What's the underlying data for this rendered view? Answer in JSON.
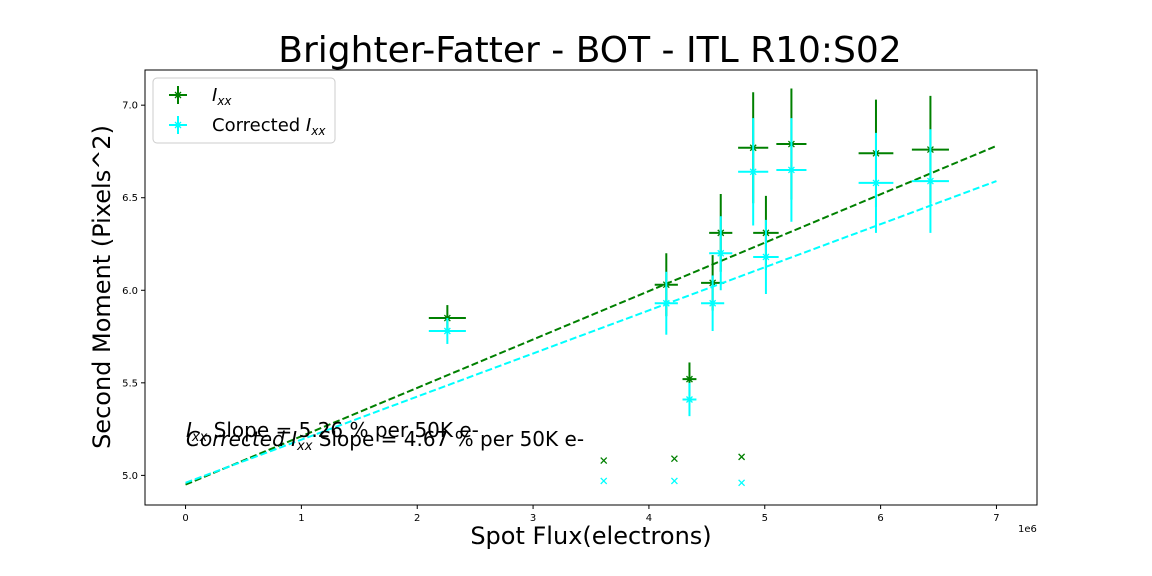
{
  "chart_data": {
    "type": "scatter",
    "title": "Brighter-Fatter - BOT - ITL R10:S02",
    "xlabel": "Spot Flux(electrons)",
    "ylabel": "Second Moment (Pixels^2)",
    "x_offset_label": "1e6",
    "xlim": [
      -0.35,
      7.35
    ],
    "ylim": [
      4.84,
      7.19
    ],
    "x_ticks": [
      0,
      1,
      2,
      3,
      4,
      5,
      6,
      7
    ],
    "y_ticks": [
      "5.0",
      "5.5",
      "6.0",
      "6.5",
      "7.0"
    ],
    "legend_position": "upper-left",
    "series": [
      {
        "name": "I_xx",
        "legend_label": "I",
        "legend_sub": "xx",
        "color": "#008000",
        "marker": "x",
        "points": [
          {
            "x": 2.26,
            "y": 5.85,
            "xerr": 0.16,
            "yerr": 0.07
          },
          {
            "x": 4.15,
            "y": 6.03,
            "xerr": 0.1,
            "yerr": 0.17
          },
          {
            "x": 4.35,
            "y": 5.52,
            "xerr": 0.06,
            "yerr": 0.09
          },
          {
            "x": 4.55,
            "y": 6.04,
            "xerr": 0.1,
            "yerr": 0.15
          },
          {
            "x": 4.62,
            "y": 6.31,
            "xerr": 0.1,
            "yerr": 0.21
          },
          {
            "x": 4.9,
            "y": 6.77,
            "xerr": 0.13,
            "yerr": 0.3
          },
          {
            "x": 5.01,
            "y": 6.31,
            "xerr": 0.11,
            "yerr": 0.2
          },
          {
            "x": 5.23,
            "y": 6.79,
            "xerr": 0.13,
            "yerr": 0.3
          },
          {
            "x": 5.96,
            "y": 6.74,
            "xerr": 0.15,
            "yerr": 0.29
          },
          {
            "x": 6.43,
            "y": 6.76,
            "xerr": 0.16,
            "yerr": 0.29
          },
          {
            "x": 3.61,
            "y": 5.08
          },
          {
            "x": 4.22,
            "y": 5.09
          },
          {
            "x": 4.8,
            "y": 5.1
          }
        ],
        "fit": {
          "slope_label": "I",
          "slope_sub": "xx",
          "slope_text": " Slope = 5.26 % per 50K e-",
          "x0": 0.0,
          "y0": 4.95,
          "x1": 7.0,
          "y1": 6.78
        }
      },
      {
        "name": "Corrected I_xx",
        "legend_label": "Corrected I",
        "legend_sub": "xx",
        "color": "#00ffff",
        "marker": "x",
        "points": [
          {
            "x": 2.26,
            "y": 5.78,
            "xerr": 0.16,
            "yerr": 0.07
          },
          {
            "x": 4.15,
            "y": 5.93,
            "xerr": 0.1,
            "yerr": 0.17
          },
          {
            "x": 4.35,
            "y": 5.41,
            "xerr": 0.06,
            "yerr": 0.09
          },
          {
            "x": 4.55,
            "y": 5.93,
            "xerr": 0.1,
            "yerr": 0.15
          },
          {
            "x": 4.62,
            "y": 6.2,
            "xerr": 0.1,
            "yerr": 0.2
          },
          {
            "x": 4.9,
            "y": 6.64,
            "xerr": 0.13,
            "yerr": 0.29
          },
          {
            "x": 5.01,
            "y": 6.18,
            "xerr": 0.11,
            "yerr": 0.2
          },
          {
            "x": 5.23,
            "y": 6.65,
            "xerr": 0.13,
            "yerr": 0.28
          },
          {
            "x": 5.96,
            "y": 6.58,
            "xerr": 0.15,
            "yerr": 0.27
          },
          {
            "x": 6.43,
            "y": 6.59,
            "xerr": 0.16,
            "yerr": 0.28
          },
          {
            "x": 3.61,
            "y": 4.97
          },
          {
            "x": 4.22,
            "y": 4.97
          },
          {
            "x": 4.8,
            "y": 4.96
          }
        ],
        "fit": {
          "slope_label": "Corrected I",
          "slope_sub": "xx",
          "slope_text": " Slope = 4.67 % per 50K e-",
          "x0": 0.0,
          "y0": 4.96,
          "x1": 7.0,
          "y1": 6.59
        }
      }
    ]
  }
}
